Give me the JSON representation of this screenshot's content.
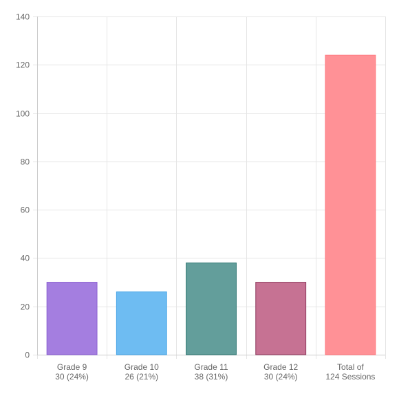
{
  "chart_data": {
    "type": "bar",
    "categories": [
      [
        "Grade 9",
        "30 (24%)"
      ],
      [
        "Grade 10",
        "26 (21%)"
      ],
      [
        "Grade 11",
        "38 (31%)"
      ],
      [
        "Grade 12",
        "30 (24%)"
      ],
      [
        "Total of",
        "124 Sessions"
      ]
    ],
    "values": [
      30,
      26,
      38,
      30,
      124
    ],
    "colors": [
      {
        "fill": "#a47ee0",
        "stroke": "#8a5fd0"
      },
      {
        "fill": "#6ebcf2",
        "stroke": "#4aa6e6"
      },
      {
        "fill": "#639e9b",
        "stroke": "#2e7672"
      },
      {
        "fill": "#c67293",
        "stroke": "#8e3a5e"
      },
      {
        "fill": "#ff9196",
        "stroke": "#ff7a80"
      }
    ],
    "ylim": [
      0,
      140
    ],
    "yticks": [
      0,
      20,
      40,
      60,
      80,
      100,
      120,
      140
    ],
    "title": "",
    "xlabel": "",
    "ylabel": "",
    "grid": true,
    "legend": "none"
  }
}
